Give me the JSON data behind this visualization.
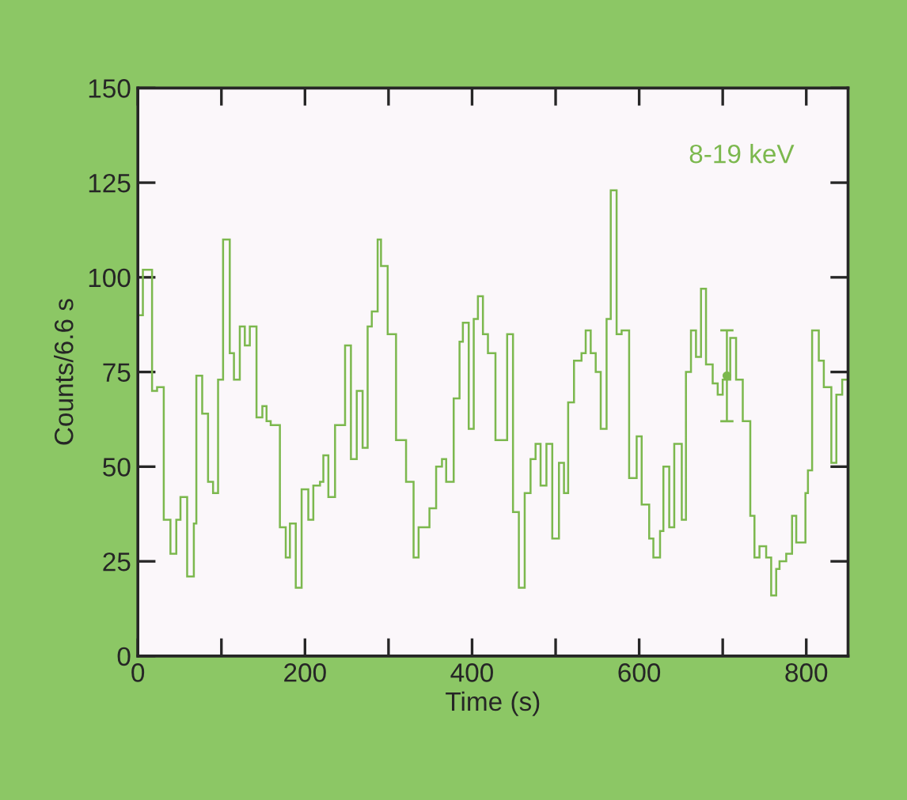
{
  "chart_data": {
    "type": "histogram",
    "xlabel": "Time (s)",
    "ylabel": "Counts/6.6 s",
    "annotations": [
      "8-19 keV"
    ],
    "color": "#7cb84e",
    "bins": [
      0,
      6,
      17,
      23,
      31,
      39,
      46,
      51,
      59,
      67,
      70,
      77,
      84,
      90,
      96,
      102,
      110,
      115,
      122,
      128,
      134,
      142,
      149,
      154,
      159,
      170,
      177,
      182,
      189,
      196,
      204,
      210,
      218,
      222,
      228,
      236,
      248,
      255,
      262,
      269,
      275,
      280,
      287,
      291,
      299,
      309,
      321,
      330,
      336,
      349,
      357,
      364,
      369,
      378,
      385,
      389,
      396,
      402,
      407,
      413,
      419,
      428,
      442,
      449,
      456,
      463,
      470,
      476,
      482,
      489,
      496,
      504,
      510,
      515,
      522,
      531,
      536,
      542,
      548,
      554,
      561,
      566,
      573,
      579,
      588,
      597,
      603,
      612,
      617,
      625,
      629,
      636,
      642,
      651,
      656,
      662,
      668,
      674,
      680,
      688,
      694,
      700,
      709,
      716,
      724,
      733,
      738,
      744,
      752,
      758,
      764,
      768,
      776,
      783,
      788,
      799,
      802,
      807,
      815,
      821,
      830,
      836,
      843,
      850
    ],
    "values": [
      90,
      102,
      70,
      71,
      36,
      27,
      36,
      42,
      21,
      35,
      74,
      64,
      46,
      43,
      73,
      110,
      80,
      73,
      87,
      82,
      87,
      63,
      66,
      62,
      61,
      34,
      26,
      35,
      18,
      44,
      36,
      45,
      46,
      53,
      42,
      61,
      82,
      52,
      70,
      55,
      87,
      91,
      110,
      103,
      85,
      57,
      46,
      26,
      34,
      39,
      50,
      52,
      46,
      68,
      83,
      88,
      60,
      89,
      95,
      85,
      80,
      57,
      85,
      38,
      18,
      43,
      52,
      56,
      45,
      56,
      31,
      51,
      43,
      67,
      78,
      80,
      86,
      80,
      75,
      60,
      89,
      123,
      85,
      86,
      47,
      58,
      40,
      31,
      26,
      33,
      50,
      34,
      56,
      36,
      75,
      86,
      79,
      97,
      77,
      72,
      69,
      73,
      84,
      73,
      62,
      37,
      26,
      29,
      26,
      16,
      23,
      25,
      27,
      37,
      30,
      43,
      49,
      86,
      78,
      71,
      51,
      69,
      73
    ],
    "series": [
      {
        "type": "scatter",
        "color": "#7cb84e",
        "marker": "circle",
        "x": [
          705
        ],
        "values": [
          74
        ],
        "errors": [
          [
            62,
            86
          ]
        ]
      }
    ],
    "xlim": [
      0,
      850
    ],
    "ylim": [
      0,
      150
    ],
    "xticks": [
      0,
      {
        "value": 100,
        "label": null
      },
      200,
      {
        "value": 300,
        "label": null
      },
      400,
      {
        "value": 500,
        "label": null
      },
      600,
      {
        "value": 700,
        "label": null
      },
      800
    ],
    "yticks": [
      0,
      25,
      50,
      75,
      100,
      125,
      150
    ],
    "grid": false,
    "legend": false
  }
}
